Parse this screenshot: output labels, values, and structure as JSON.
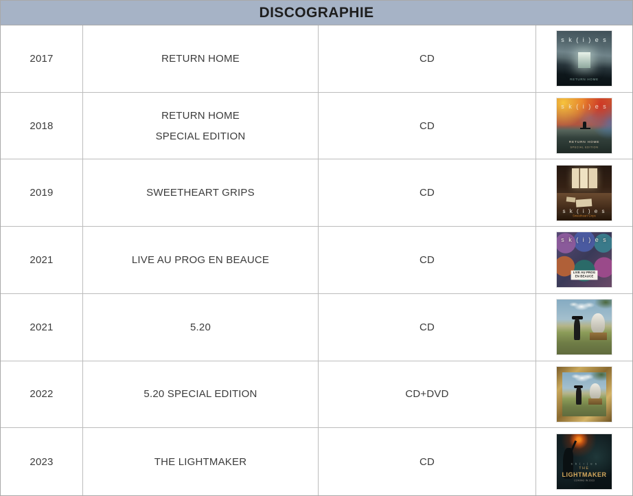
{
  "header": {
    "title": "DISCOGRAPHIE",
    "background": "#a6b3c6"
  },
  "rows": [
    {
      "year": "2017",
      "title": "RETURN HOME",
      "format": "CD",
      "cover": {
        "logo": "s k ( i ) e s",
        "caption": "RETURN HOME"
      }
    },
    {
      "year": "2018",
      "title": "RETURN HOME",
      "title2": "SPECIAL EDITION",
      "format": "CD",
      "cover": {
        "logo": "s k ( i ) e s",
        "caption": "RETURN HOME",
        "sub": "SPECIAL EDITION"
      }
    },
    {
      "year": "2019",
      "title": "SWEETHEART GRIPS",
      "format": "CD",
      "cover": {
        "logo": "s k ( i ) e s",
        "caption": "Sweetheart Grips"
      }
    },
    {
      "year": "2021",
      "title": "LIVE AU PROG EN BEAUCE",
      "format": "CD",
      "cover": {
        "logo": "s k ( i ) e s",
        "caption": "LIVE AU PROG EN BEAUCE"
      }
    },
    {
      "year": "2021",
      "title": "5.20",
      "format": "CD",
      "cover": {}
    },
    {
      "year": "2022",
      "title": "5.20 SPECIAL EDITION",
      "format": "CD+DVD",
      "cover": {}
    },
    {
      "year": "2023",
      "title": "THE LIGHTMAKER",
      "format": "CD",
      "cover": {
        "logo": "s k ( i ) e s",
        "title_top": "THE",
        "caption": "LIGHTMAKER",
        "sub": "COMING IN 2023"
      }
    }
  ]
}
